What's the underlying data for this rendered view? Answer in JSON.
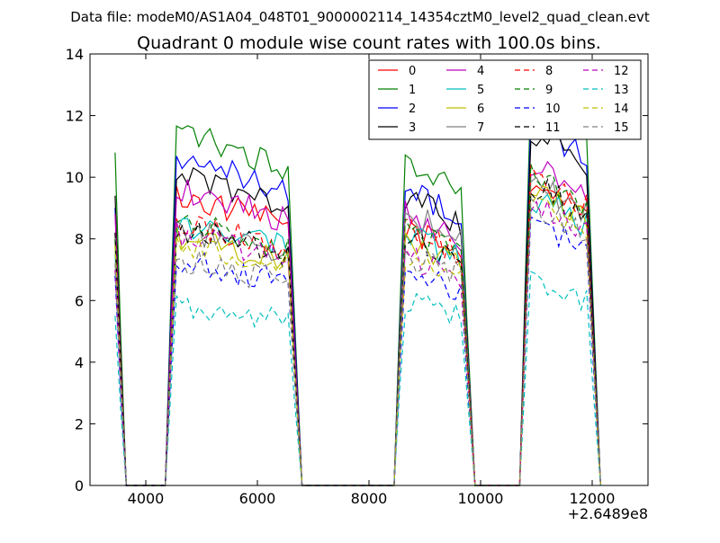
{
  "figure": {
    "suptitle": "Data file: modeM0/AS1A04_048T01_9000002114_14354cztM0_level2_quad_clean.evt",
    "title": "Quadrant 0 module wise count rates with 100.0s bins.",
    "x_offset_label": "+2.6489e8"
  },
  "chart_data": {
    "type": "line",
    "title": "Quadrant 0 module wise count rates with 100.0s bins.",
    "xlabel": "",
    "ylabel": "",
    "xlim": [
      3000,
      13000
    ],
    "ylim": [
      0,
      14
    ],
    "x_ticks": [
      4000,
      6000,
      8000,
      10000,
      12000
    ],
    "x_tick_labels": [
      "4000",
      "6000",
      "8000",
      "10000",
      "12000"
    ],
    "y_ticks": [
      0,
      2,
      4,
      6,
      8,
      10,
      12,
      14
    ],
    "y_tick_labels": [
      "0",
      "2",
      "4",
      "6",
      "8",
      "10",
      "12",
      "14"
    ],
    "x_offset": "+2.6489e8",
    "grid": false,
    "legend_position": "top-right",
    "legend_columns": 4,
    "segments": [
      {
        "start": 3450,
        "end": 3650
      },
      {
        "start": 4450,
        "end": 6700
      },
      {
        "start": 8550,
        "end": 9800
      },
      {
        "start": 10800,
        "end": 12050
      }
    ],
    "series": [
      {
        "name": "0",
        "color": "#ff0000",
        "dash": "solid",
        "levels": [
          8.0,
          9.0,
          8.0,
          9.5
        ]
      },
      {
        "name": "1",
        "color": "#008000",
        "dash": "solid",
        "levels": [
          10.8,
          11.0,
          10.0,
          12.0
        ]
      },
      {
        "name": "2",
        "color": "#0000ff",
        "dash": "solid",
        "levels": [
          9.0,
          10.2,
          9.2,
          11.2
        ]
      },
      {
        "name": "3",
        "color": "#000000",
        "dash": "solid",
        "levels": [
          9.4,
          9.6,
          9.0,
          11.0
        ]
      },
      {
        "name": "4",
        "color": "#bf00bf",
        "dash": "solid",
        "levels": [
          8.8,
          9.2,
          8.5,
          10.0
        ]
      },
      {
        "name": "5",
        "color": "#00bfbf",
        "dash": "solid",
        "levels": [
          7.5,
          8.2,
          7.8,
          9.0
        ]
      },
      {
        "name": "6",
        "color": "#bfbf00",
        "dash": "solid",
        "levels": [
          7.8,
          7.7,
          7.6,
          9.2
        ]
      },
      {
        "name": "7",
        "color": "#808080",
        "dash": "solid",
        "levels": [
          8.0,
          8.0,
          8.5,
          9.4
        ]
      },
      {
        "name": "8",
        "color": "#ff0000",
        "dash": "dashed",
        "levels": [
          8.2,
          8.2,
          8.0,
          9.6
        ]
      },
      {
        "name": "9",
        "color": "#008000",
        "dash": "dashed",
        "levels": [
          8.0,
          8.2,
          8.0,
          9.6
        ]
      },
      {
        "name": "10",
        "color": "#0000ff",
        "dash": "dashed",
        "levels": [
          6.8,
          7.0,
          6.6,
          8.2
        ]
      },
      {
        "name": "11",
        "color": "#000000",
        "dash": "dashed",
        "levels": [
          8.2,
          8.0,
          7.8,
          9.4
        ]
      },
      {
        "name": "12",
        "color": "#bf00bf",
        "dash": "dashed",
        "levels": [
          7.0,
          7.8,
          7.2,
          8.8
        ]
      },
      {
        "name": "13",
        "color": "#00bfbf",
        "dash": "dashed",
        "levels": [
          5.5,
          5.6,
          5.7,
          6.4
        ]
      },
      {
        "name": "14",
        "color": "#bfbf00",
        "dash": "dashed",
        "levels": [
          7.8,
          7.6,
          7.2,
          8.8
        ]
      },
      {
        "name": "15",
        "color": "#808080",
        "dash": "dashed",
        "levels": [
          7.2,
          7.0,
          7.2,
          8.6
        ]
      }
    ]
  }
}
